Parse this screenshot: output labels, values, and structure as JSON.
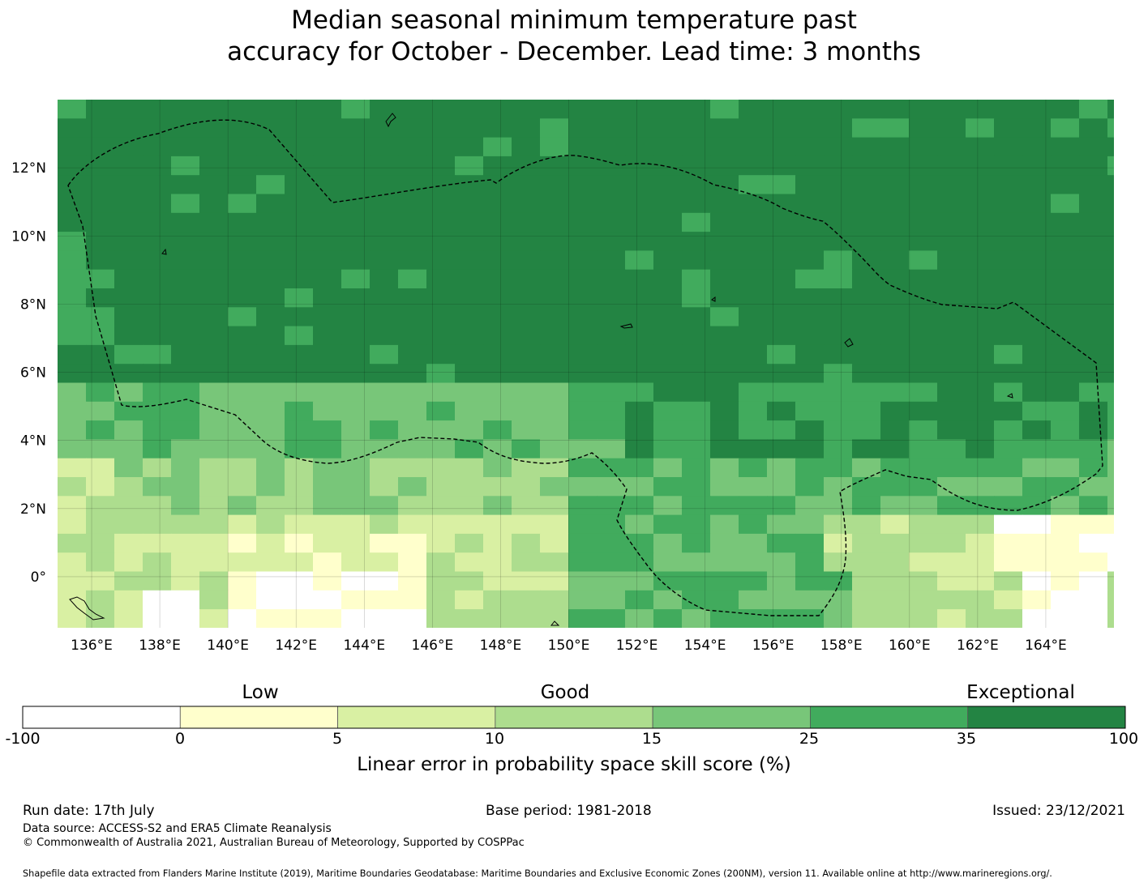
{
  "title_line1": "Median seasonal minimum temperature past",
  "title_line2": "accuracy for October - December. Lead time: 3 months",
  "map": {
    "extent": {
      "lon_min": 135.0,
      "lon_max": 166.0,
      "lat_min": -1.5,
      "lat_max": 14.0
    },
    "grid_step_deg": 0.8333,
    "lon_ticks": [
      "136°E",
      "138°E",
      "140°E",
      "142°E",
      "144°E",
      "146°E",
      "148°E",
      "150°E",
      "152°E",
      "154°E",
      "156°E",
      "158°E",
      "160°E",
      "162°E",
      "164°E"
    ],
    "lat_ticks": [
      "12°N",
      "10°N",
      "8°N",
      "6°N",
      "4°N",
      "2°N",
      "0°"
    ],
    "region_skill_classes": [
      {
        "class": 6,
        "note": "most of domain north of ~5°N"
      },
      {
        "class": 5,
        "note": "band ~2°N to ~6°N"
      },
      {
        "class": 4,
        "note": "band ~0°N to ~3°N"
      },
      {
        "class": 3,
        "note": "equatorial band west of 152°E"
      },
      {
        "class": 1,
        "note": "patches near equator"
      },
      {
        "class": 0,
        "note": "negative skill patches near equator"
      }
    ]
  },
  "colorbar": {
    "classes": [
      "Low",
      "Good",
      "Exceptional"
    ],
    "ticks": [
      "-100",
      "0",
      "5",
      "10",
      "15",
      "25",
      "35",
      "100"
    ],
    "colors": [
      "#ffffff",
      "#ffffcc",
      "#d9f0a3",
      "#addd8e",
      "#78c679",
      "#41ab5d",
      "#238443"
    ],
    "label": "Linear error in probability space skill score (%)"
  },
  "footer": {
    "run_date": "Run date: 17th July",
    "base_period": "Base period: 1981-2018",
    "issued": "Issued: 23/12/2021",
    "data_source": "Data source: ACCESS-S2 and ERA5 Climate Reanalysis",
    "copyright": "© Commonwealth of Australia 2021, Australian Bureau of Meteorology, Supported by COSPPac",
    "shapefile": "Shapefile data extracted from Flanders Marine Institute (2019), Maritime Boundaries Geodatabase: Maritime Boundaries and Exclusive Economic Zones (200NM), version 11. Available online at http://www.marineregions.org/."
  }
}
